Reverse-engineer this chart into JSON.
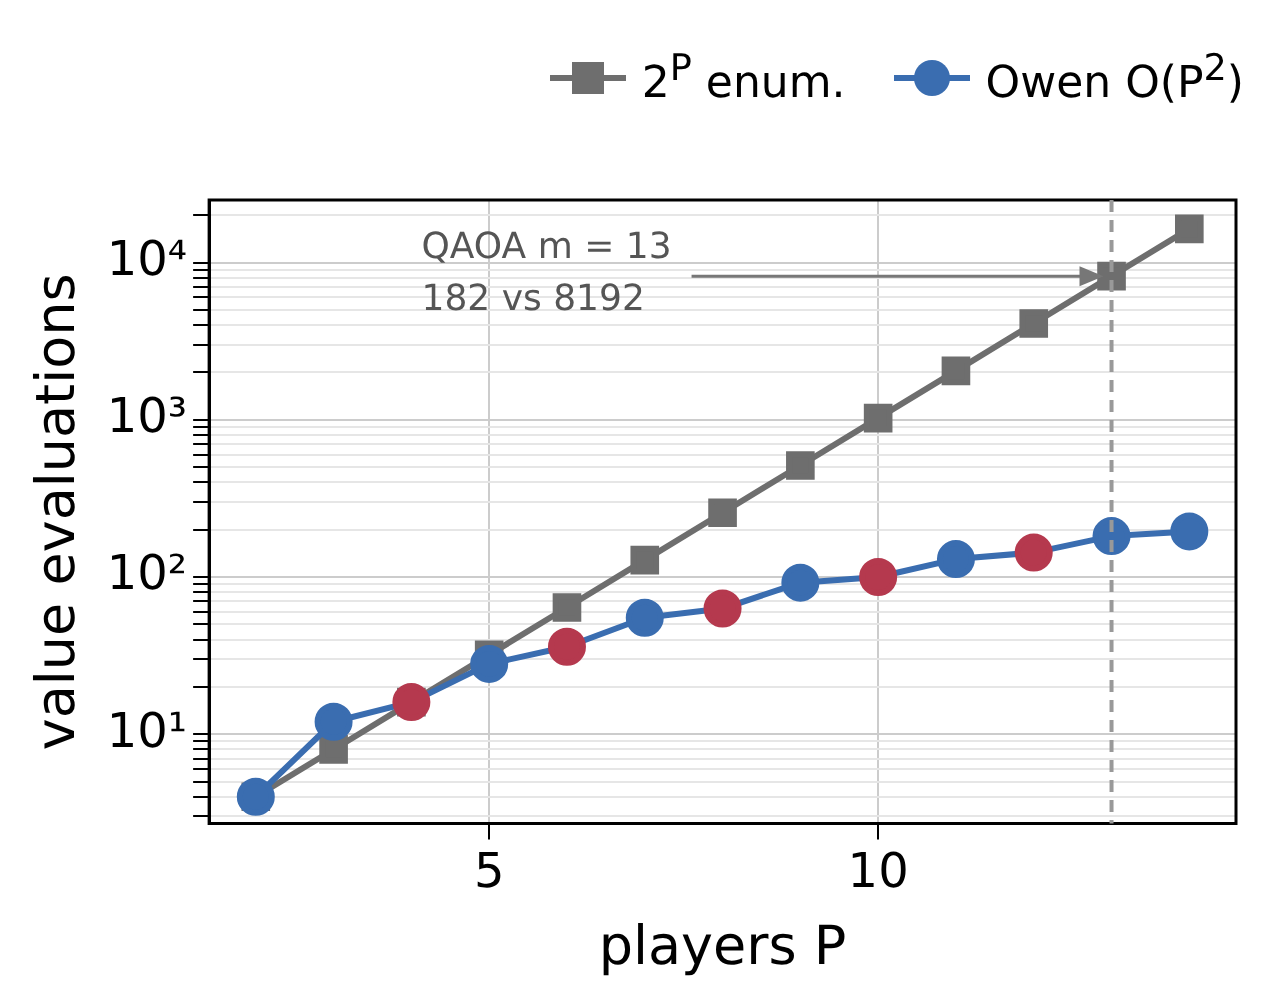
{
  "chart_data": {
    "type": "line",
    "xlabel": "players P",
    "ylabel": "value evaluations",
    "x": [
      2,
      3,
      4,
      5,
      6,
      7,
      8,
      9,
      10,
      11,
      12,
      13,
      14
    ],
    "series": [
      {
        "name": "2$^{P}$ enum.",
        "color": "#6e6e6e",
        "marker": "square",
        "values": [
          4,
          8,
          16,
          32,
          64,
          128,
          256,
          512,
          1024,
          2048,
          4096,
          8192,
          16384
        ]
      },
      {
        "name": "Owen O(P$^{2}$)",
        "color": "#3a6db0",
        "marker": "circle",
        "colors": [
          "#3a6db0",
          "#3a6db0",
          "#b5394e",
          "#3a6db0",
          "#b5394e",
          "#3a6db0",
          "#b5394e",
          "#3a6db0",
          "#b5394e",
          "#3a6db0",
          "#b5394e",
          "#3a6db0",
          "#3a6db0"
        ],
        "values": [
          4,
          12,
          16,
          28,
          36,
          55,
          63,
          92,
          100,
          130,
          143,
          182,
          195
        ]
      }
    ],
    "log": "y",
    "xlim": [
      1.4,
      14.6
    ],
    "xticks": [
      5,
      10
    ],
    "ylim": [
      2.7,
      25000
    ],
    "yticks": [
      {
        "value": 3,
        "label": null
      },
      {
        "value": 4,
        "label": null
      },
      {
        "value": 5,
        "label": null
      },
      {
        "value": 6,
        "label": null
      },
      {
        "value": 7,
        "label": null
      },
      {
        "value": 8,
        "label": null
      },
      {
        "value": 9,
        "label": null
      },
      {
        "value": 10,
        "label": "10¹"
      },
      {
        "value": 20,
        "label": null
      },
      {
        "value": 30,
        "label": null
      },
      {
        "value": 40,
        "label": null
      },
      {
        "value": 50,
        "label": null
      },
      {
        "value": 60,
        "label": null
      },
      {
        "value": 70,
        "label": null
      },
      {
        "value": 80,
        "label": null
      },
      {
        "value": 90,
        "label": null
      },
      {
        "value": 100,
        "label": "10²"
      },
      {
        "value": 200,
        "label": null
      },
      {
        "value": 300,
        "label": null
      },
      {
        "value": 400,
        "label": null
      },
      {
        "value": 500,
        "label": null
      },
      {
        "value": 600,
        "label": null
      },
      {
        "value": 700,
        "label": null
      },
      {
        "value": 800,
        "label": null
      },
      {
        "value": 900,
        "label": null
      },
      {
        "value": 1000,
        "label": "10³"
      },
      {
        "value": 2000,
        "label": null
      },
      {
        "value": 3000,
        "label": null
      },
      {
        "value": 4000,
        "label": null
      },
      {
        "value": 5000,
        "label": null
      },
      {
        "value": 6000,
        "label": null
      },
      {
        "value": 7000,
        "label": null
      },
      {
        "value": 8000,
        "label": null
      },
      {
        "value": 9000,
        "label": null
      },
      {
        "value": 10000,
        "label": "10⁴"
      },
      {
        "value": 20000,
        "label": null
      }
    ],
    "grid": true,
    "legend": "top",
    "line_style": "solid",
    "ref_lines": [
      {
        "axis": "x",
        "value": 13,
        "color": "#999999",
        "line_style": "dashed"
      }
    ],
    "annotations": [
      {
        "text": "QAOA m = 13\n182 vs 8192",
        "x": 13,
        "y": 8192
      }
    ]
  }
}
